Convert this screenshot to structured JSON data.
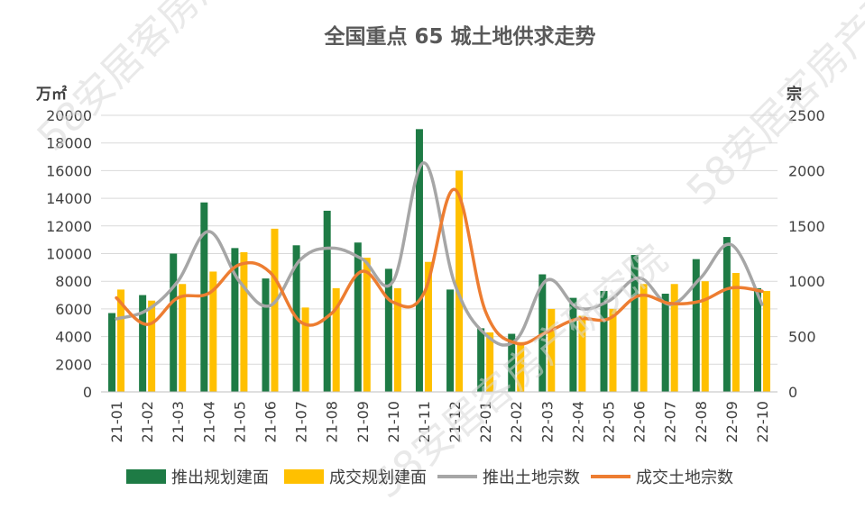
{
  "chart_data": {
    "type": "bar",
    "title": "全国重点 65 城土地供求走势",
    "y_left_unit": "万㎡",
    "y_right_unit": "宗",
    "y_left_range": [
      0,
      20000
    ],
    "y_left_ticks": [
      "0",
      "2000",
      "4000",
      "6000",
      "8000",
      "10000",
      "12000",
      "14000",
      "16000",
      "18000",
      "20000"
    ],
    "y_right_range": [
      0,
      2500
    ],
    "y_right_ticks": [
      "0",
      "500",
      "1000",
      "1500",
      "2000",
      "2500"
    ],
    "grid": true,
    "legend_position": "bottom",
    "categories": [
      "21-01",
      "21-02",
      "21-03",
      "21-04",
      "21-05",
      "21-06",
      "21-07",
      "21-08",
      "21-09",
      "21-10",
      "21-11",
      "21-12",
      "22-01",
      "22-02",
      "22-03",
      "22-04",
      "22-05",
      "22-06",
      "22-07",
      "22-08",
      "22-09",
      "22-10"
    ],
    "series": [
      {
        "name": "推出规划建面",
        "kind": "bar",
        "axis": "left",
        "color": "#1e7b45",
        "values": [
          5700,
          7000,
          10000,
          13700,
          10400,
          8200,
          10600,
          13100,
          10800,
          8900,
          19000,
          7400,
          4600,
          4200,
          8500,
          6800,
          7300,
          9900,
          7100,
          9600,
          11200,
          7500
        ]
      },
      {
        "name": "成交规划建面",
        "kind": "bar",
        "axis": "left",
        "color": "#ffc000",
        "values": [
          7400,
          6600,
          7800,
          8700,
          10100,
          11800,
          6100,
          7500,
          9700,
          7500,
          9400,
          16000,
          4300,
          3600,
          6000,
          5500,
          6000,
          7800,
          7800,
          8000,
          8600,
          7300
        ]
      },
      {
        "name": "推出土地宗数",
        "kind": "line",
        "axis": "right",
        "color": "#a6a6a6",
        "values": [
          660,
          740,
          1000,
          1450,
          1000,
          780,
          1200,
          1300,
          1200,
          1000,
          2070,
          980,
          520,
          470,
          1010,
          760,
          820,
          1030,
          790,
          1030,
          1330,
          790
        ]
      },
      {
        "name": "成交土地宗数",
        "kind": "line",
        "axis": "right",
        "color": "#ed7d31",
        "values": [
          850,
          610,
          850,
          890,
          1150,
          1080,
          630,
          710,
          1090,
          810,
          890,
          1830,
          730,
          440,
          540,
          660,
          660,
          870,
          800,
          820,
          940,
          910
        ]
      }
    ]
  },
  "watermark": {
    "text": "58安居客房产研究院",
    "color": "#d9d9d9"
  }
}
